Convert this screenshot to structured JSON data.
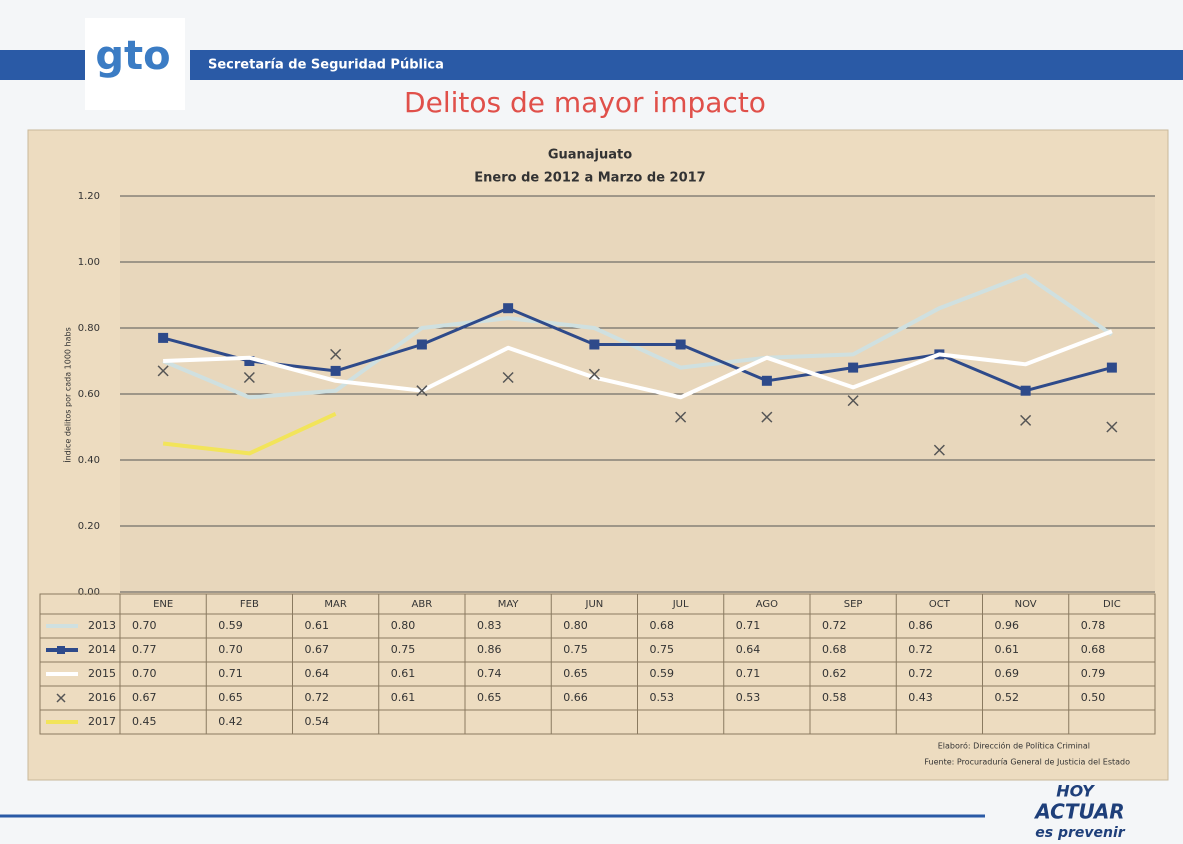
{
  "slide": {
    "logo": "gto",
    "department": "Secretaría de Seguridad Pública",
    "title": "Delitos de mayor impacto",
    "footer": {
      "line1": "HOY",
      "line2": "ACTUAR",
      "line3": "es prevenir"
    }
  },
  "chart_data": {
    "type": "line",
    "title": "Guanajuato",
    "subtitle": "Enero de 2012 a  Marzo de 2017",
    "y_label": "Índice delitos por cada 1000 habs",
    "categories": [
      "ENE",
      "FEB",
      "MAR",
      "ABR",
      "MAY",
      "JUN",
      "JUL",
      "AGO",
      "SEP",
      "OCT",
      "NOV",
      "DIC"
    ],
    "ylim": [
      0,
      1.2
    ],
    "yticks": [
      {
        "value": 0,
        "label": "0.00"
      },
      {
        "value": 0.2,
        "label": "0.20"
      },
      {
        "value": 0.4,
        "label": "0.40"
      },
      {
        "value": 0.6,
        "label": "0.60"
      },
      {
        "value": 0.8,
        "label": "0.80"
      },
      {
        "value": 1.0,
        "label": "1.00"
      },
      {
        "value": 1.2,
        "label": "1.20"
      }
    ],
    "grid": true,
    "series": [
      {
        "name": "2013",
        "color": "#cfe0e0",
        "line": true,
        "marker": "none",
        "values": [
          0.7,
          0.59,
          0.61,
          0.8,
          0.83,
          0.8,
          0.68,
          0.71,
          0.72,
          0.86,
          0.96,
          0.78
        ],
        "value_labels": [
          "0.70",
          "0.59",
          "0.61",
          "0.80",
          "0.83",
          "0.80",
          "0.68",
          "0.71",
          "0.72",
          "0.86",
          "0.96",
          "0.78"
        ]
      },
      {
        "name": "2014",
        "color": "#2e4a8a",
        "line": true,
        "marker": "square",
        "values": [
          0.77,
          0.7,
          0.67,
          0.75,
          0.86,
          0.75,
          0.75,
          0.64,
          0.68,
          0.72,
          0.61,
          0.68
        ],
        "value_labels": [
          "0.77",
          "0.70",
          "0.67",
          "0.75",
          "0.86",
          "0.75",
          "0.75",
          "0.64",
          "0.68",
          "0.72",
          "0.61",
          "0.68"
        ]
      },
      {
        "name": "2015",
        "color": "#ffffff",
        "line": true,
        "marker": "none",
        "values": [
          0.7,
          0.71,
          0.64,
          0.61,
          0.74,
          0.65,
          0.59,
          0.71,
          0.62,
          0.72,
          0.69,
          0.79
        ],
        "value_labels": [
          "0.70",
          "0.71",
          "0.64",
          "0.61",
          "0.74",
          "0.65",
          "0.59",
          "0.71",
          "0.62",
          "0.72",
          "0.69",
          "0.79"
        ]
      },
      {
        "name": "2016",
        "color": "#555555",
        "line": false,
        "marker": "x",
        "values": [
          0.67,
          0.65,
          0.72,
          0.61,
          0.65,
          0.66,
          0.53,
          0.53,
          0.58,
          0.43,
          0.52,
          0.5
        ],
        "value_labels": [
          "0.67",
          "0.65",
          "0.72",
          "0.61",
          "0.65",
          "0.66",
          "0.53",
          "0.53",
          "0.58",
          "0.43",
          "0.52",
          "0.50"
        ]
      },
      {
        "name": "2017",
        "color": "#f2e45a",
        "line": true,
        "marker": "none",
        "values": [
          0.45,
          0.42,
          0.54,
          null,
          null,
          null,
          null,
          null,
          null,
          null,
          null,
          null
        ],
        "value_labels": [
          "0.45",
          "0.42",
          "0.54",
          null,
          null,
          null,
          null,
          null,
          null,
          null,
          null,
          null
        ]
      }
    ],
    "notes": [
      "Elaboró: Dirección de Política Criminal",
      "Fuente: Procuraduría General de Justicia del Estado"
    ]
  }
}
